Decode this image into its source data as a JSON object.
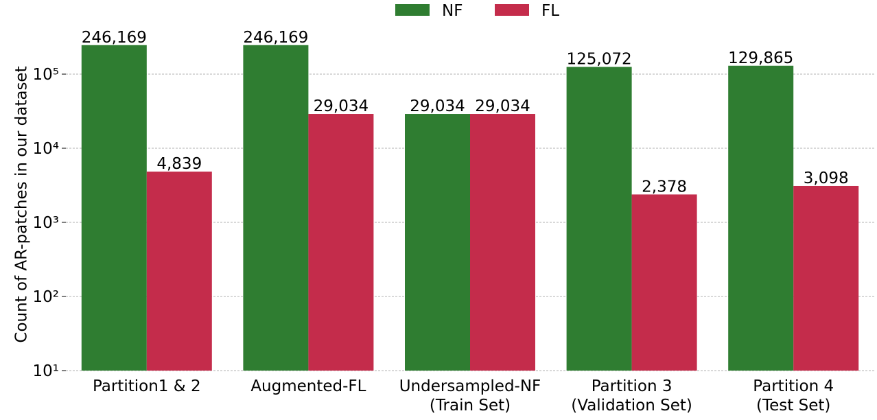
{
  "chart_data": {
    "type": "bar",
    "y_label": "Count of AR-patches in our dataset",
    "categories": [
      "Partition1 & 2",
      "Augmented-FL",
      "Undersampled-NF\n(Train Set)",
      "Partition 3\n(Validation Set)",
      "Partition 4\n(Test Set)"
    ],
    "series": [
      {
        "name": "NF",
        "color": "#2f7d31",
        "values": [
          246169,
          246169,
          29034,
          125072,
          129865
        ],
        "value_labels": [
          "246,169",
          "246,169",
          "29,034",
          "125,072",
          "129,865"
        ]
      },
      {
        "name": "FL",
        "color": "#c42c4b",
        "values": [
          4839,
          29034,
          29034,
          2378,
          3098
        ],
        "value_labels": [
          "4,839",
          "29,034",
          "29,034",
          "2,378",
          "3,098"
        ]
      }
    ],
    "log_scale": true,
    "ylim": [
      10,
      400000
    ],
    "yticks": [
      {
        "value": 10,
        "label": "10¹"
      },
      {
        "value": 100,
        "label": "10²"
      },
      {
        "value": 1000,
        "label": "10³"
      },
      {
        "value": 10000,
        "label": "10⁴"
      },
      {
        "value": 100000,
        "label": "10⁵"
      }
    ],
    "grid": true,
    "legend": "upper center"
  }
}
